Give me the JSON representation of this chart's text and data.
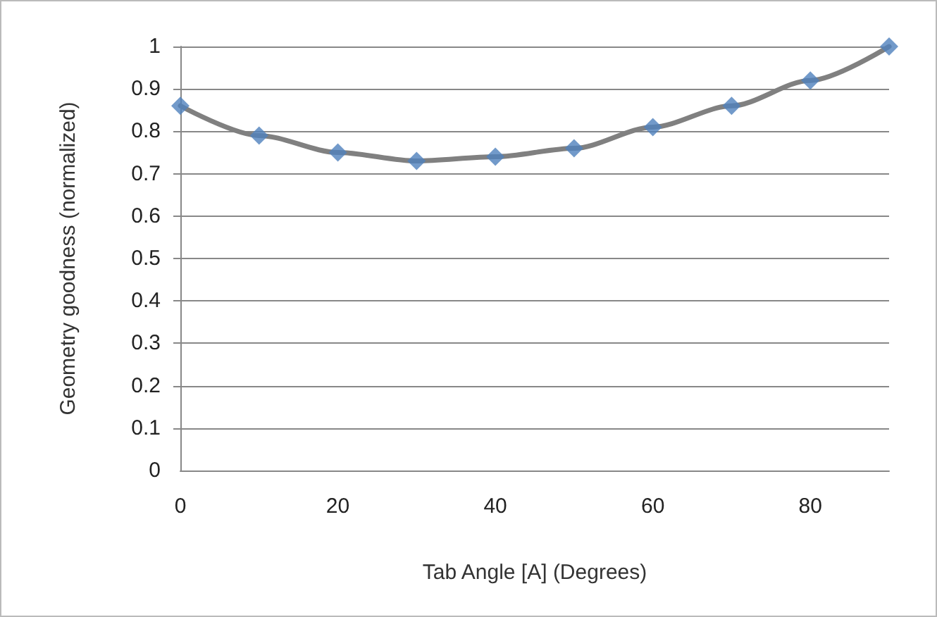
{
  "chart_data": {
    "type": "line",
    "xlabel": "Tab Angle [A] (Degrees)",
    "ylabel": "Geometry goodness (normalized)",
    "x": [
      0,
      10,
      20,
      30,
      40,
      50,
      60,
      70,
      80,
      90
    ],
    "series": [
      {
        "color": "#808080",
        "marker": "none",
        "values": [
          0.86,
          0.79,
          0.75,
          0.73,
          0.74,
          0.76,
          0.81,
          0.86,
          0.92,
          1.0
        ]
      },
      {
        "type": "scatter",
        "color": "#4f81bd",
        "marker": "diamond",
        "values": [
          0.86,
          0.79,
          0.75,
          0.73,
          0.74,
          0.76,
          0.81,
          0.86,
          0.92,
          1.0
        ]
      }
    ],
    "xlim": [
      0,
      90
    ],
    "xticks": [
      0,
      20,
      40,
      60,
      80
    ],
    "ylim": [
      0,
      1
    ],
    "yticks": [
      0,
      0.1,
      0.2,
      0.3,
      0.4,
      0.5,
      0.6,
      0.7,
      0.8,
      0.9,
      1
    ],
    "grid": "y",
    "line_style": "solid"
  }
}
